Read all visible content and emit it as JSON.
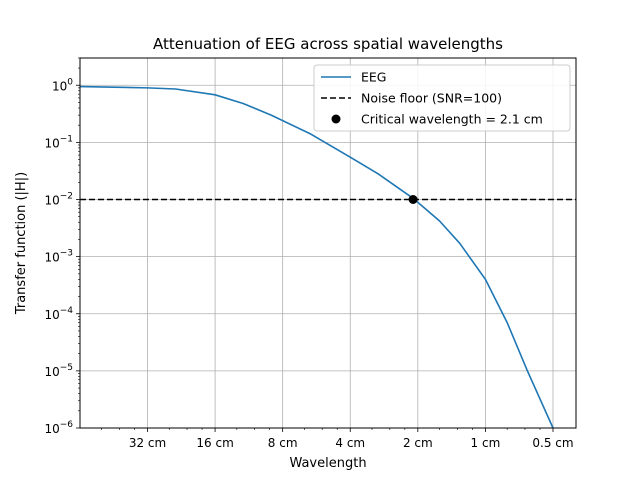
{
  "chart_data": {
    "type": "line",
    "title": "Attenuation of EEG across spatial wavelengths",
    "xlabel": "Wavelength",
    "ylabel": "Transfer function (|H|)",
    "x_scale": "log",
    "x_direction": "decreasing wavelength (increasing spatial frequency)",
    "y_scale": "log",
    "ylim": [
      1e-06,
      3
    ],
    "x_ticks": [
      {
        "value_cm": 32,
        "label": "32 cm"
      },
      {
        "value_cm": 16,
        "label": "16 cm"
      },
      {
        "value_cm": 8,
        "label": "8 cm"
      },
      {
        "value_cm": 4,
        "label": "4 cm"
      },
      {
        "value_cm": 2,
        "label": "2 cm"
      },
      {
        "value_cm": 1,
        "label": "1 cm"
      },
      {
        "value_cm": 0.5,
        "label": "0.5 cm"
      }
    ],
    "y_ticks": [
      {
        "value": 1,
        "base": "10",
        "exp": "0"
      },
      {
        "value": 0.1,
        "base": "10",
        "exp": "−1"
      },
      {
        "value": 0.01,
        "base": "10",
        "exp": "−2"
      },
      {
        "value": 0.001,
        "base": "10",
        "exp": "−3"
      },
      {
        "value": 0.0001,
        "base": "10",
        "exp": "−4"
      },
      {
        "value": 1e-05,
        "base": "10",
        "exp": "−5"
      },
      {
        "value": 1e-06,
        "base": "10",
        "exp": "−6"
      }
    ],
    "grid": true,
    "legend_position": "top-right",
    "series": [
      {
        "name": "EEG",
        "kind": "line",
        "color": "#1f77b4",
        "points": [
          {
            "wavelength_cm": 64,
            "y": 0.95
          },
          {
            "wavelength_cm": 32,
            "y": 0.9
          },
          {
            "wavelength_cm": 24,
            "y": 0.86
          },
          {
            "wavelength_cm": 16,
            "y": 0.68
          },
          {
            "wavelength_cm": 12,
            "y": 0.48
          },
          {
            "wavelength_cm": 9,
            "y": 0.3
          },
          {
            "wavelength_cm": 6,
            "y": 0.14
          },
          {
            "wavelength_cm": 4,
            "y": 0.055
          },
          {
            "wavelength_cm": 3,
            "y": 0.028
          },
          {
            "wavelength_cm": 2.1,
            "y": 0.0105
          },
          {
            "wavelength_cm": 1.6,
            "y": 0.0042
          },
          {
            "wavelength_cm": 1.3,
            "y": 0.0017
          },
          {
            "wavelength_cm": 1,
            "y": 0.0004
          },
          {
            "wavelength_cm": 0.8,
            "y": 7e-05
          },
          {
            "wavelength_cm": 0.65,
            "y": 1e-05
          },
          {
            "wavelength_cm": 0.5,
            "y": 1e-06
          }
        ]
      },
      {
        "name": "Noise floor (SNR=100)",
        "kind": "hline",
        "color": "#000000",
        "dash": "dashed",
        "y": 0.01
      },
      {
        "name": "Critical wavelength = 2.1 cm",
        "kind": "point",
        "color": "#000000",
        "wavelength_cm": 2.1,
        "y": 0.01
      }
    ]
  }
}
